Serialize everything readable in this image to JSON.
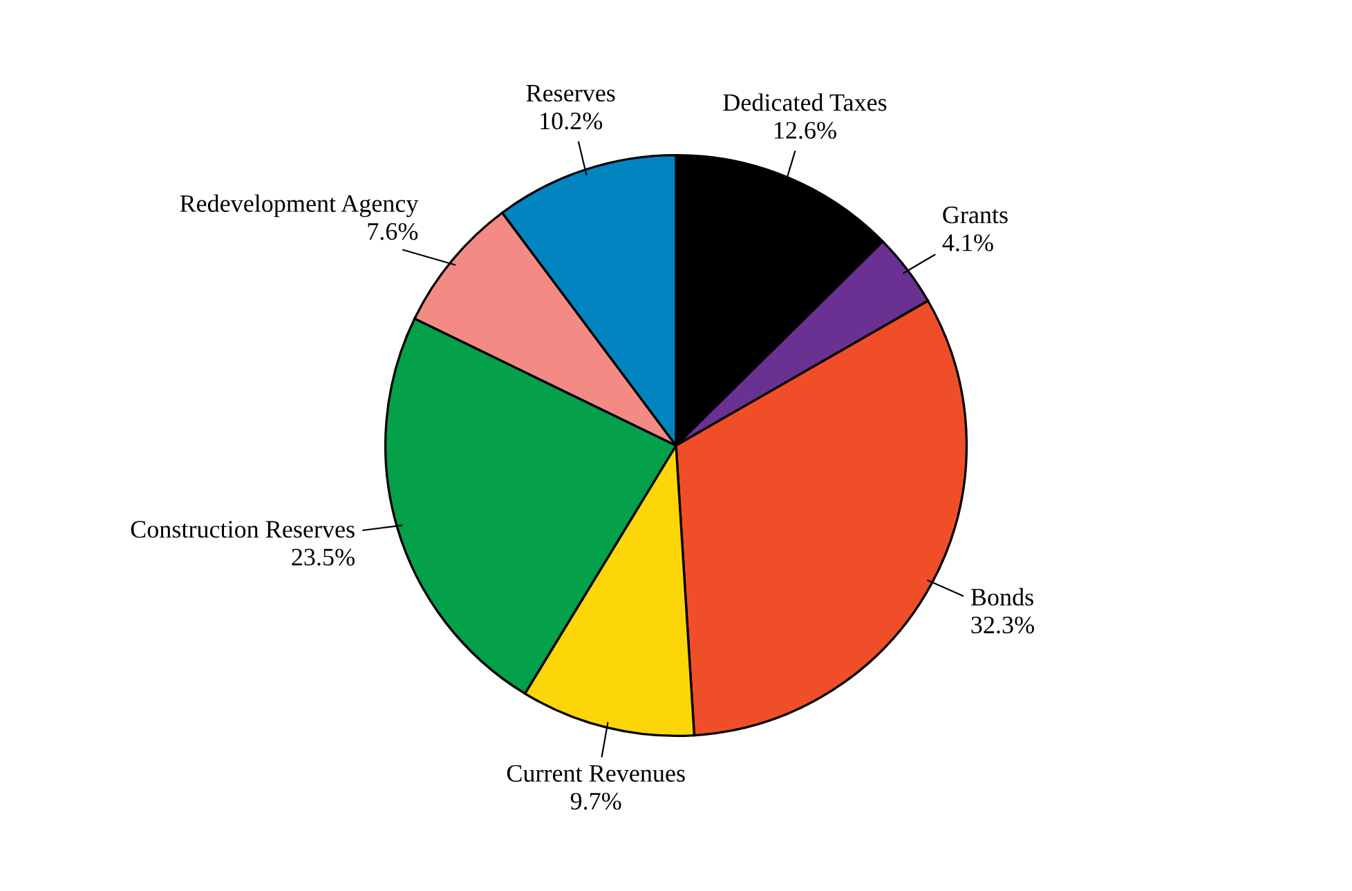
{
  "chart_data": {
    "type": "pie",
    "categories": [
      "Dedicated Taxes",
      "Grants",
      "Bonds",
      "Current Revenues",
      "Construction Reserves",
      "Redevelopment Agency",
      "Reserves"
    ],
    "values": [
      12.6,
      4.1,
      32.3,
      9.7,
      23.5,
      7.6,
      10.2
    ],
    "value_labels": [
      "12.6%",
      "4.1%",
      "32.3%",
      "9.7%",
      "23.5%",
      "7.6%",
      "10.2%"
    ],
    "colors": [
      "#000000",
      "#6a3193",
      "#f04e28",
      "#fdd60a",
      "#05a04a",
      "#f48a84",
      "#0284c0"
    ],
    "legend": false
  }
}
